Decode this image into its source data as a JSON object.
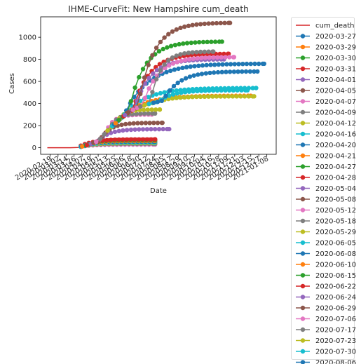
{
  "chart_data": {
    "type": "line",
    "title": "IHME-CurveFit: New Hampshire cum_death",
    "xlabel": "Date",
    "ylabel": "Cases",
    "ylim": [
      -60,
      1185
    ],
    "xlim": [
      "2020-02-05",
      "2021-01-22"
    ],
    "yticks": [
      0,
      200,
      400,
      600,
      800,
      1000
    ],
    "xtick_labels": [
      "2020-02-19",
      "2020-03-02",
      "2020-03-14",
      "2020-03-26",
      "2020-04-07",
      "2020-04-19",
      "2020-05-01",
      "2020-05-13",
      "2020-05-25",
      "2020-06-06",
      "2020-06-18",
      "2020-06-30",
      "2020-07-12",
      "2020-07-24",
      "2020-08-05",
      "2020-08-17",
      "2020-08-29",
      "2020-09-10",
      "2020-09-22",
      "2020-10-04",
      "2020-10-16",
      "2020-10-28",
      "2020-11-09",
      "2020-11-21",
      "2020-12-03",
      "2020-12-15",
      "2020-12-27",
      "2021-01-08"
    ],
    "grid": false,
    "legend_position": "outside-right",
    "actual": {
      "name": "cum_death",
      "color": "#d62728",
      "x": [
        "2020-02-15",
        "2020-03-20",
        "2020-04-01",
        "2020-04-15",
        "2020-05-01",
        "2020-05-15",
        "2020-06-01",
        "2020-06-15",
        "2020-07-01",
        "2020-07-15",
        "2020-08-01",
        "2020-08-09"
      ],
      "y": [
        0,
        0,
        2,
        24,
        60,
        155,
        250,
        320,
        370,
        395,
        420,
        430
      ]
    },
    "series": [
      {
        "name": "2020-03-27",
        "color": "#1f77b4",
        "end": "2020-07-25",
        "final": 32
      },
      {
        "name": "2020-03-29",
        "color": "#ff7f0e",
        "end": "2020-07-25",
        "final": 38
      },
      {
        "name": "2020-03-30",
        "color": "#2ca02c",
        "end": "2020-07-25",
        "final": 45
      },
      {
        "name": "2020-03-31",
        "color": "#d62728",
        "end": "2020-07-25",
        "final": 72
      },
      {
        "name": "2020-04-01",
        "color": "#9467bd",
        "end": "2020-07-25",
        "final": 52
      },
      {
        "name": "2020-04-05",
        "color": "#8c564b",
        "end": "2020-07-25",
        "final": 58
      },
      {
        "name": "2020-04-07",
        "color": "#e377c2",
        "end": "2020-07-25",
        "final": 28
      },
      {
        "name": "2020-04-09",
        "color": "#7f7f7f",
        "end": "2020-07-25",
        "final": 35
      },
      {
        "name": "2020-04-12",
        "color": "#bcbd22",
        "end": "2020-07-25",
        "final": 42
      },
      {
        "name": "2020-04-16",
        "color": "#17becf",
        "end": "2020-07-25",
        "final": 48
      },
      {
        "name": "2020-04-20",
        "color": "#1f77b4",
        "end": "2020-07-25",
        "final": 55
      },
      {
        "name": "2020-04-21",
        "color": "#ff7f0e",
        "end": "2020-07-25",
        "final": 62
      },
      {
        "name": "2020-04-27",
        "color": "#2ca02c",
        "end": "2020-07-25",
        "final": 68
      },
      {
        "name": "2020-04-28",
        "color": "#d62728",
        "end": "2020-07-25",
        "final": 75
      },
      {
        "name": "2020-05-04",
        "color": "#9467bd",
        "end": "2020-08-15",
        "final": 168
      },
      {
        "name": "2020-05-08",
        "color": "#8c564b",
        "end": "2020-08-05",
        "final": 225
      },
      {
        "name": "2020-05-12",
        "color": "#e377c2",
        "end": "2020-07-20",
        "final": 300
      },
      {
        "name": "2020-05-18",
        "color": "#7f7f7f",
        "end": "2020-07-25",
        "final": 310
      },
      {
        "name": "2020-05-29",
        "color": "#bcbd22",
        "end": "2020-08-01",
        "final": 345
      },
      {
        "name": "2020-06-05",
        "color": "#17becf",
        "end": "2020-12-23",
        "final": 540
      },
      {
        "name": "2020-06-08",
        "color": "#1f77b4",
        "end": "2021-01-04",
        "final": 760
      },
      {
        "name": "2020-06-10",
        "color": "#ff7f0e",
        "end": "2020-12-15",
        "final": 470
      },
      {
        "name": "2020-06-15",
        "color": "#2ca02c",
        "end": "2020-11-02",
        "final": 960
      },
      {
        "name": "2020-06-22",
        "color": "#d62728",
        "end": "2020-11-12",
        "final": 850
      },
      {
        "name": "2020-06-24",
        "color": "#9467bd",
        "end": "2020-11-05",
        "final": 800
      },
      {
        "name": "2020-06-29",
        "color": "#8c564b",
        "end": "2020-11-14",
        "final": 1130
      },
      {
        "name": "2020-07-06",
        "color": "#e377c2",
        "end": "2020-11-20",
        "final": 820
      },
      {
        "name": "2020-07-17",
        "color": "#7f7f7f",
        "end": "2020-10-20",
        "final": 870
      },
      {
        "name": "2020-07-23",
        "color": "#bcbd22",
        "end": "2020-12-20",
        "final": 465
      },
      {
        "name": "2020-07-30",
        "color": "#17becf",
        "end": "2020-12-10",
        "final": 520
      },
      {
        "name": "2020-08-06",
        "color": "#1f77b4",
        "end": "2020-12-25",
        "final": 690
      }
    ]
  }
}
